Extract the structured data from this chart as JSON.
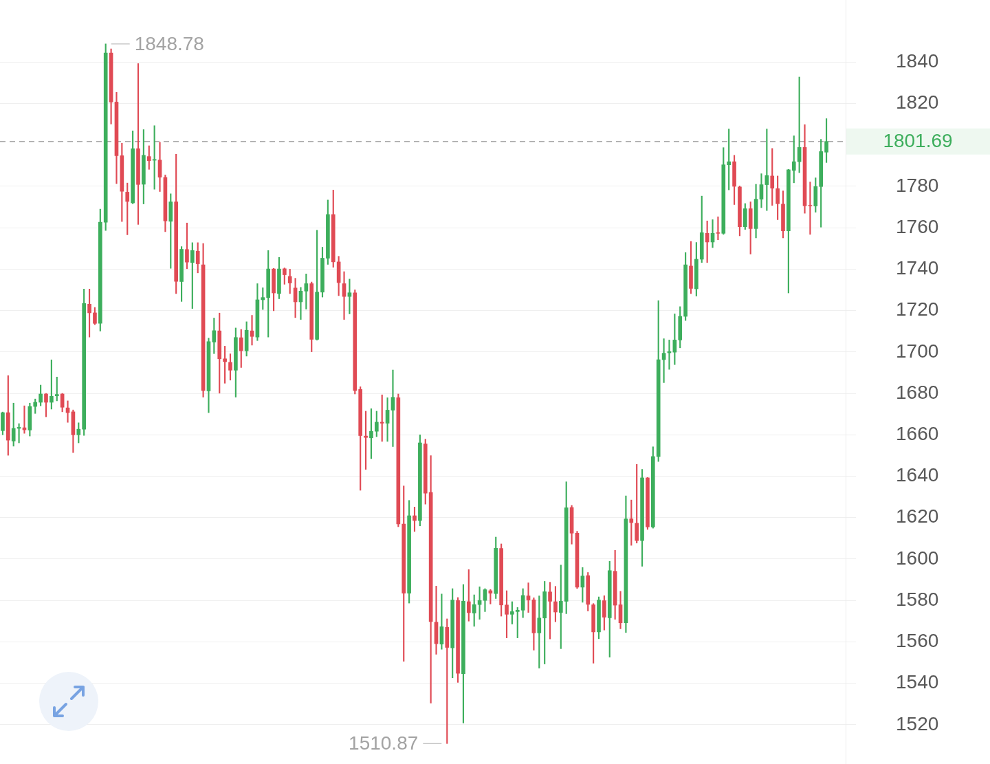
{
  "chart_data": {
    "type": "candlestick",
    "categories": [
      null,
      null,
      null,
      null,
      null,
      null,
      null,
      null,
      null,
      null,
      null,
      null,
      null,
      null,
      null,
      null,
      null,
      null,
      null,
      null,
      null,
      null,
      null,
      null,
      null,
      null,
      null,
      null,
      null,
      null,
      null,
      null,
      null,
      null,
      null,
      null,
      null,
      null,
      null,
      null,
      null,
      null,
      null,
      null,
      null,
      null,
      null,
      null,
      null,
      null,
      null,
      null,
      null,
      null,
      null,
      null,
      null,
      null,
      null,
      null,
      null,
      null,
      null,
      null,
      null,
      null,
      null,
      null,
      null,
      null,
      null,
      null,
      null,
      null,
      null,
      null,
      null,
      null,
      null,
      null,
      null,
      null,
      null,
      null,
      null,
      null,
      null,
      null,
      null,
      null,
      null,
      null,
      null,
      null,
      null,
      null,
      null,
      null,
      null,
      null,
      null,
      null,
      null,
      null,
      null,
      null,
      null,
      null,
      null,
      null,
      null,
      null,
      null,
      null,
      null,
      null,
      null,
      null,
      null,
      null,
      null,
      null,
      null,
      null,
      null,
      null,
      null,
      null,
      null,
      null,
      null,
      null,
      null,
      null,
      null,
      null,
      null,
      null,
      null,
      null,
      null,
      null,
      null,
      null,
      null,
      null,
      null,
      null,
      null,
      null,
      null,
      null,
      null
    ],
    "ohlc": [
      [
        1662.0,
        1671.0,
        1660.0,
        1670.7
      ],
      [
        1670.7,
        1688.6,
        1650.1,
        1657.4
      ],
      [
        1657.0,
        1675.3,
        1654.5,
        1663.1
      ],
      [
        1663.1,
        1665.4,
        1656.1,
        1663.6
      ],
      [
        1663.4,
        1674.0,
        1660.7,
        1662.4
      ],
      [
        1662.3,
        1675.3,
        1659.4,
        1673.7
      ],
      [
        1673.7,
        1677.3,
        1670.3,
        1675.7
      ],
      [
        1675.7,
        1684.0,
        1674.0,
        1679.7
      ],
      [
        1679.7,
        1680.0,
        1668.7,
        1675.7
      ],
      [
        1675.7,
        1696.2,
        1672.4,
        1678.6
      ],
      [
        1678.8,
        1687.9,
        1676.4,
        1679.5
      ],
      [
        1679.7,
        1680.0,
        1671.1,
        1673.3
      ],
      [
        1673.0,
        1676.4,
        1666.0,
        1670.7
      ],
      [
        1671.1,
        1672.0,
        1651.4,
        1660.0
      ],
      [
        1660.0,
        1665.8,
        1656.1,
        1662.7
      ],
      [
        1662.7,
        1730.4,
        1659.7,
        1723.4
      ],
      [
        1723.1,
        1730.4,
        1707.2,
        1718.9
      ],
      [
        1718.9,
        1721.5,
        1713.2,
        1713.8
      ],
      [
        1713.8,
        1769.0,
        1710.1,
        1762.7
      ],
      [
        1762.7,
        1848.78,
        1758.7,
        1844.4
      ],
      [
        1844.4,
        1846.4,
        1810.1,
        1820.7
      ],
      [
        1820.7,
        1825.4,
        1781.3,
        1794.8
      ],
      [
        1794.8,
        1800.8,
        1763.0,
        1777.6
      ],
      [
        1777.2,
        1781.6,
        1756.6,
        1772.7
      ],
      [
        1772.0,
        1806.8,
        1771.6,
        1798.2
      ],
      [
        1798.2,
        1839.3,
        1761.6,
        1780.9
      ],
      [
        1781.0,
        1807.4,
        1771.5,
        1795.0
      ],
      [
        1794.4,
        1799.6,
        1788.2,
        1792.4
      ],
      [
        1792.6,
        1809.3,
        1778.6,
        1793.0
      ],
      [
        1792.7,
        1801.3,
        1777.5,
        1784.4
      ],
      [
        1784.3,
        1785.5,
        1758.1,
        1763.3
      ],
      [
        1763.1,
        1776.4,
        1740.4,
        1772.5
      ],
      [
        1772.5,
        1795.5,
        1728.2,
        1734.1
      ],
      [
        1734.0,
        1750.9,
        1724.4,
        1749.6
      ],
      [
        1749.5,
        1762.3,
        1740.2,
        1743.4
      ],
      [
        1743.2,
        1752.8,
        1721.0,
        1749.0
      ],
      [
        1748.7,
        1752.8,
        1738.2,
        1742.6
      ],
      [
        1742.1,
        1752.4,
        1678.2,
        1681.4
      ],
      [
        1681.2,
        1706.7,
        1670.7,
        1705.0
      ],
      [
        1704.8,
        1716.4,
        1699.2,
        1710.3
      ],
      [
        1710.2,
        1718.8,
        1680.1,
        1696.7
      ],
      [
        1696.7,
        1702.8,
        1684.9,
        1695.3
      ],
      [
        1695.0,
        1699.1,
        1686.4,
        1691.2
      ],
      [
        1691.2,
        1711.6,
        1678.2,
        1707.0
      ],
      [
        1706.9,
        1710.9,
        1692.5,
        1700.6
      ],
      [
        1700.6,
        1714.6,
        1698.0,
        1710.5
      ],
      [
        1710.2,
        1717.7,
        1703.3,
        1707.5
      ],
      [
        1707.2,
        1733.0,
        1705.5,
        1725.2
      ],
      [
        1725.2,
        1731.0,
        1720.5,
        1726.3
      ],
      [
        1726.3,
        1749.0,
        1707.2,
        1740.1
      ],
      [
        1740.1,
        1740.4,
        1719.9,
        1728.5
      ],
      [
        1728.2,
        1745.7,
        1725.7,
        1740.1
      ],
      [
        1740.2,
        1740.6,
        1732.7,
        1737.3
      ],
      [
        1736.5,
        1740.0,
        1728.2,
        1733.3
      ],
      [
        1730.9,
        1735.6,
        1716.6,
        1724.2
      ],
      [
        1724.2,
        1731.2,
        1715.7,
        1729.4
      ],
      [
        1729.4,
        1737.7,
        1720.7,
        1733.0
      ],
      [
        1733.0,
        1733.8,
        1700.1,
        1706.1
      ],
      [
        1706.1,
        1758.8,
        1705.7,
        1728.9
      ],
      [
        1728.9,
        1750.6,
        1726.5,
        1745.3
      ],
      [
        1745.3,
        1773.4,
        1742.3,
        1766.4
      ],
      [
        1766.4,
        1778.2,
        1740.9,
        1743.5
      ],
      [
        1743.5,
        1746.2,
        1727.2,
        1733.5
      ],
      [
        1733.0,
        1738.8,
        1715.7,
        1726.8
      ],
      [
        1726.8,
        1735.2,
        1718.4,
        1728.6
      ],
      [
        1728.6,
        1730.0,
        1679.7,
        1681.4
      ],
      [
        1681.9,
        1683.2,
        1633.2,
        1659.6
      ],
      [
        1659.4,
        1671.4,
        1643.3,
        1658.7
      ],
      [
        1658.5,
        1672.6,
        1648.5,
        1661.7
      ],
      [
        1661.7,
        1671.4,
        1659.1,
        1666.1
      ],
      [
        1666.1,
        1679.3,
        1656.8,
        1665.6
      ],
      [
        1665.6,
        1677.9,
        1656.8,
        1671.9
      ],
      [
        1671.9,
        1691.3,
        1654.3,
        1678.1
      ],
      [
        1677.9,
        1679.7,
        1615.6,
        1616.9
      ],
      [
        1616.9,
        1635.3,
        1550.6,
        1583.5
      ],
      [
        1583.5,
        1628.3,
        1578.7,
        1620.9
      ],
      [
        1620.9,
        1625.1,
        1613.3,
        1618.6
      ],
      [
        1618.6,
        1660.0,
        1616.0,
        1656.1
      ],
      [
        1655.6,
        1657.9,
        1626.5,
        1631.8
      ],
      [
        1632.2,
        1649.9,
        1530.4,
        1569.8
      ],
      [
        1569.5,
        1586.9,
        1554.0,
        1559.1
      ],
      [
        1558.9,
        1583.1,
        1556.4,
        1567.3
      ],
      [
        1567.0,
        1571.1,
        1510.87,
        1557.3
      ],
      [
        1557.1,
        1585.7,
        1542.6,
        1580.2
      ],
      [
        1580.0,
        1581.4,
        1540.4,
        1544.8
      ],
      [
        1544.6,
        1587.7,
        1520.8,
        1579.6
      ],
      [
        1579.4,
        1594.9,
        1570.0,
        1574.1
      ],
      [
        1573.9,
        1582.7,
        1567.5,
        1578.0
      ],
      [
        1578.0,
        1586.6,
        1570.9,
        1580.0
      ],
      [
        1580.0,
        1585.7,
        1574.6,
        1585.2
      ],
      [
        1584.7,
        1585.3,
        1578.3,
        1583.5
      ],
      [
        1583.3,
        1610.6,
        1580.9,
        1605.2
      ],
      [
        1605.1,
        1607.3,
        1572.4,
        1577.8
      ],
      [
        1577.8,
        1584.7,
        1561.9,
        1573.3
      ],
      [
        1573.3,
        1579.4,
        1568.6,
        1574.6
      ],
      [
        1574.6,
        1576.6,
        1561.9,
        1575.3
      ],
      [
        1575.3,
        1585.7,
        1571.7,
        1582.4
      ],
      [
        1582.2,
        1588.5,
        1574.2,
        1580.2
      ],
      [
        1580.3,
        1581.3,
        1556.0,
        1564.3
      ],
      [
        1564.3,
        1582.2,
        1547.3,
        1571.5
      ],
      [
        1571.5,
        1589.2,
        1549.3,
        1584.2
      ],
      [
        1584.1,
        1588.8,
        1561.4,
        1579.6
      ],
      [
        1579.4,
        1586.8,
        1569.7,
        1574.4
      ],
      [
        1574.2,
        1597.1,
        1556.7,
        1579.6
      ],
      [
        1579.6,
        1637.3,
        1573.6,
        1624.8
      ],
      [
        1624.9,
        1625.9,
        1607.2,
        1612.5
      ],
      [
        1612.5,
        1613.4,
        1585.8,
        1586.4
      ],
      [
        1586.4,
        1595.9,
        1579.1,
        1591.8
      ],
      [
        1592.0,
        1593.5,
        1574.9,
        1578.1
      ],
      [
        1577.9,
        1578.5,
        1549.7,
        1564.8
      ],
      [
        1564.8,
        1581.7,
        1561.5,
        1580.2
      ],
      [
        1579.9,
        1582.3,
        1565.7,
        1571.9
      ],
      [
        1571.6,
        1598.9,
        1552.6,
        1594.4
      ],
      [
        1594.1,
        1604.2,
        1570.9,
        1577.7
      ],
      [
        1577.9,
        1584.4,
        1566.3,
        1569.2
      ],
      [
        1569.2,
        1630.5,
        1564.5,
        1619.4
      ],
      [
        1619.4,
        1628.5,
        1606.6,
        1617.6
      ],
      [
        1617.3,
        1645.7,
        1607.7,
        1608.9
      ],
      [
        1608.9,
        1643.3,
        1596.5,
        1639.2
      ],
      [
        1639.2,
        1639.4,
        1614.3,
        1615.5
      ],
      [
        1615.5,
        1654.2,
        1614.9,
        1649.5
      ],
      [
        1649.5,
        1724.8,
        1647.1,
        1696.3
      ],
      [
        1696.3,
        1706.4,
        1685.2,
        1699.4
      ],
      [
        1699.6,
        1705.8,
        1691.6,
        1700.2
      ],
      [
        1699.9,
        1718.4,
        1693.9,
        1705.8
      ],
      [
        1705.8,
        1721.9,
        1702.0,
        1717.2
      ],
      [
        1717.2,
        1748.0,
        1715.2,
        1742.1
      ],
      [
        1741.5,
        1753.4,
        1728.2,
        1730.7
      ],
      [
        1730.5,
        1752.9,
        1727.0,
        1744.8
      ],
      [
        1744.8,
        1775.3,
        1743.2,
        1757.6
      ],
      [
        1757.3,
        1763.3,
        1743.2,
        1753.1
      ],
      [
        1753.1,
        1763.9,
        1750.4,
        1757.3
      ],
      [
        1757.6,
        1765.3,
        1754.2,
        1757.3
      ],
      [
        1757.3,
        1798.7,
        1756.8,
        1790.4
      ],
      [
        1790.4,
        1807.7,
        1778.3,
        1791.9
      ],
      [
        1791.9,
        1795.0,
        1771.2,
        1780.0
      ],
      [
        1779.7,
        1780.2,
        1756.1,
        1760.5
      ],
      [
        1760.5,
        1771.7,
        1759.2,
        1769.2
      ],
      [
        1769.2,
        1772.5,
        1747.3,
        1759.6
      ],
      [
        1759.6,
        1781.0,
        1755.1,
        1773.8
      ],
      [
        1773.8,
        1786.1,
        1769.7,
        1780.8
      ],
      [
        1780.8,
        1807.7,
        1768.3,
        1785.2
      ],
      [
        1785.0,
        1798.3,
        1770.8,
        1779.1
      ],
      [
        1778.9,
        1785.0,
        1763.9,
        1771.6
      ],
      [
        1771.4,
        1777.8,
        1755.1,
        1758.5
      ],
      [
        1758.5,
        1788.2,
        1728.5,
        1788.0
      ],
      [
        1787.7,
        1804.4,
        1781.7,
        1791.9
      ],
      [
        1791.9,
        1832.8,
        1786.6,
        1798.8
      ],
      [
        1798.8,
        1809.8,
        1767.0,
        1770.6
      ],
      [
        1770.8,
        1782.1,
        1756.8,
        1770.5
      ],
      [
        1770.5,
        1784.1,
        1767.5,
        1779.9
      ],
      [
        1779.9,
        1802.7,
        1760.3,
        1796.8
      ],
      [
        1796.5,
        1812.7,
        1791.5,
        1801.69
      ]
    ],
    "colors": [
      "#3dae5c",
      "#e04a54",
      "#3dae5c",
      "#3dae5c",
      "#e04a54",
      "#3dae5c",
      "#3dae5c",
      "#3dae5c",
      "#e04a54",
      "#3dae5c",
      "#3dae5c",
      "#e04a54",
      "#e04a54",
      "#e04a54",
      "#3dae5c",
      "#3dae5c",
      "#e04a54",
      "#e04a54",
      "#3dae5c",
      "#3dae5c",
      "#e04a54",
      "#e04a54",
      "#e04a54",
      "#e04a54",
      "#3dae5c",
      "#e04a54",
      "#3dae5c",
      "#e04a54",
      "#3dae5c",
      "#e04a54",
      "#e04a54",
      "#3dae5c",
      "#e04a54",
      "#3dae5c",
      "#e04a54",
      "#3dae5c",
      "#e04a54",
      "#e04a54",
      "#3dae5c",
      "#3dae5c",
      "#e04a54",
      "#e04a54",
      "#e04a54",
      "#3dae5c",
      "#e04a54",
      "#3dae5c",
      "#e04a54",
      "#3dae5c",
      "#3dae5c",
      "#3dae5c",
      "#e04a54",
      "#3dae5c",
      "#e04a54",
      "#e04a54",
      "#e04a54",
      "#3dae5c",
      "#3dae5c",
      "#e04a54",
      "#3dae5c",
      "#3dae5c",
      "#3dae5c",
      "#e04a54",
      "#e04a54",
      "#e04a54",
      "#3dae5c",
      "#e04a54",
      "#e04a54",
      "#e04a54",
      "#3dae5c",
      "#3dae5c",
      "#e04a54",
      "#3dae5c",
      "#3dae5c",
      "#e04a54",
      "#e04a54",
      "#3dae5c",
      "#e04a54",
      "#3dae5c",
      "#e04a54",
      "#e04a54",
      "#e04a54",
      "#3dae5c",
      "#e04a54",
      "#3dae5c",
      "#e04a54",
      "#3dae5c",
      "#e04a54",
      "#3dae5c",
      "#3dae5c",
      "#3dae5c",
      "#e04a54",
      "#3dae5c",
      "#e04a54",
      "#e04a54",
      "#3dae5c",
      "#3dae5c",
      "#3dae5c",
      "#e04a54",
      "#e04a54",
      "#3dae5c",
      "#3dae5c",
      "#e04a54",
      "#e04a54",
      "#3dae5c",
      "#3dae5c",
      "#e04a54",
      "#e04a54",
      "#3dae5c",
      "#e04a54",
      "#e04a54",
      "#3dae5c",
      "#e04a54",
      "#3dae5c",
      "#e04a54",
      "#e04a54",
      "#3dae5c",
      "#e04a54",
      "#e04a54",
      "#3dae5c",
      "#e04a54",
      "#3dae5c",
      "#3dae5c",
      "#3dae5c",
      "#3dae5c",
      "#3dae5c",
      "#3dae5c",
      "#3dae5c",
      "#e04a54",
      "#3dae5c",
      "#3dae5c",
      "#e04a54",
      "#3dae5c",
      "#e04a54",
      "#3dae5c",
      "#3dae5c",
      "#e04a54",
      "#e04a54",
      "#3dae5c",
      "#e04a54",
      "#3dae5c",
      "#3dae5c",
      "#3dae5c",
      "#e04a54",
      "#e04a54",
      "#e04a54",
      "#3dae5c",
      "#3dae5c",
      "#3dae5c",
      "#e04a54",
      "#e04a54",
      "#3dae5c",
      "#3dae5c",
      "#3dae5c"
    ],
    "ylim": [
      1501,
      1870
    ],
    "yticks": [
      1520,
      1540,
      1560,
      1580,
      1600,
      1620,
      1640,
      1660,
      1680,
      1700,
      1720,
      1740,
      1760,
      1780,
      1820,
      1840
    ],
    "grid": "y",
    "tick_labels": "y",
    "ref_lines": [
      {
        "axis": "y",
        "value": 1801.69,
        "label": "1801.69",
        "color": "#a8a8a8",
        "line_style": "dashed"
      }
    ],
    "annotations": [
      "1848.78",
      "1510.87"
    ]
  }
}
